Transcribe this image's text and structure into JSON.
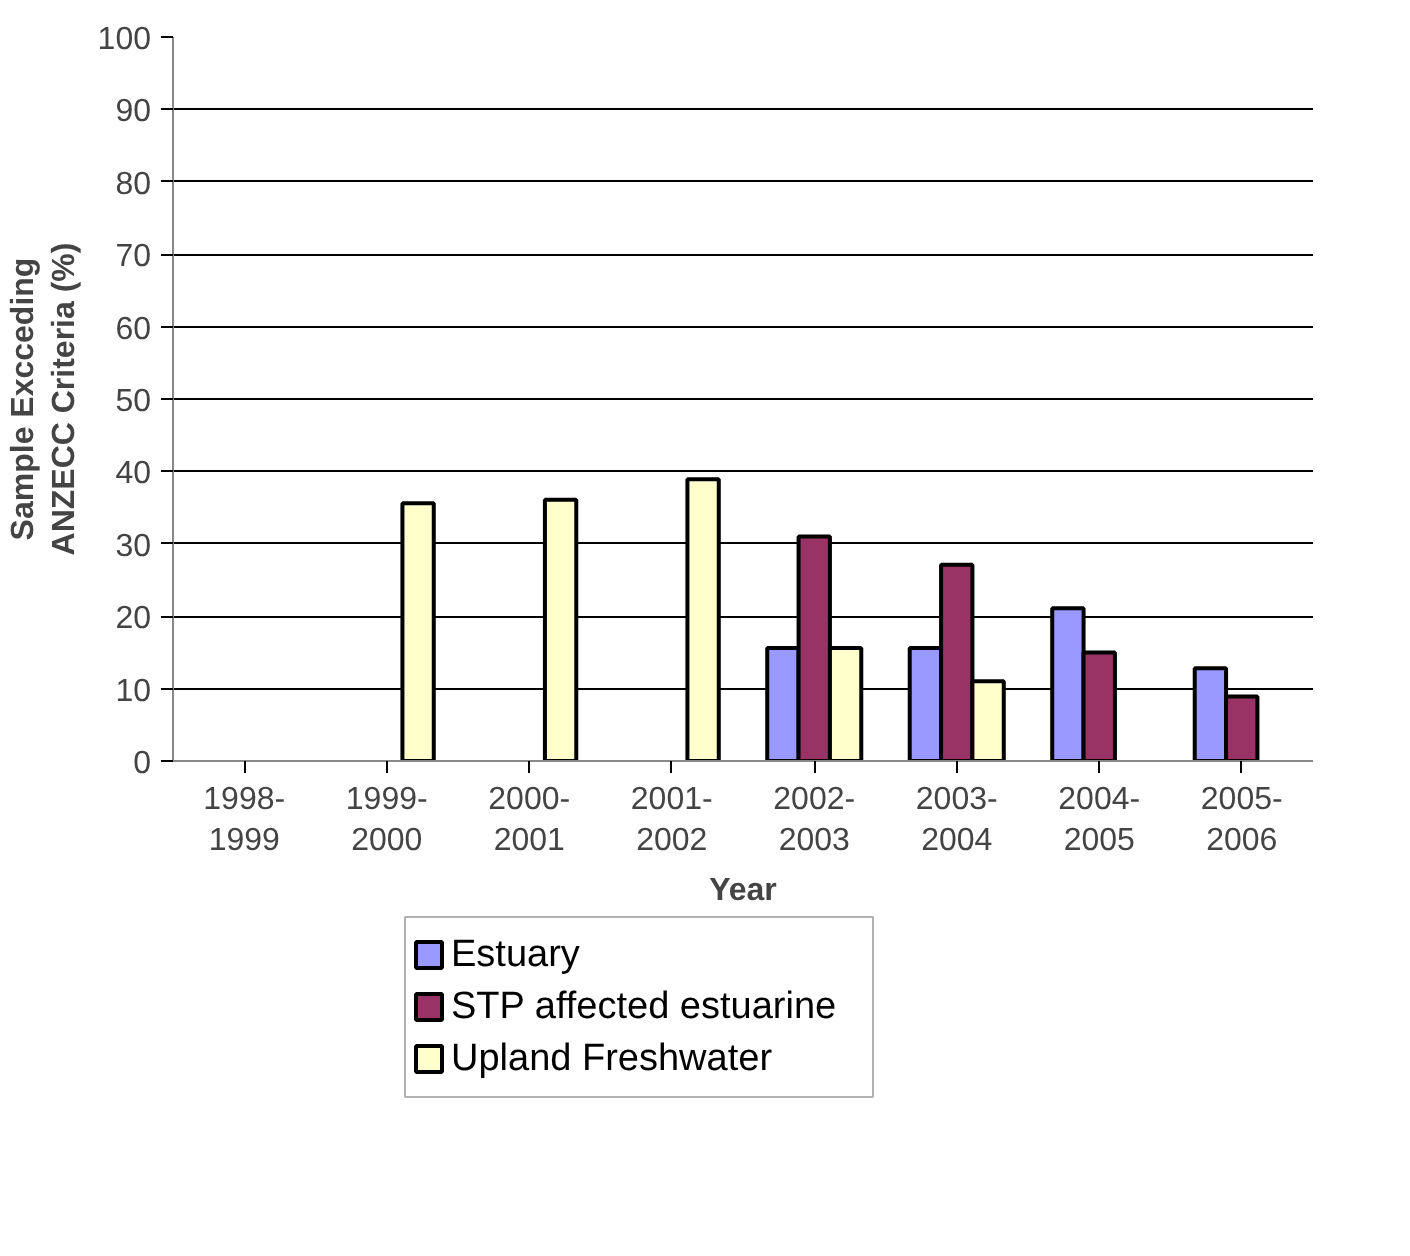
{
  "chart_data": {
    "type": "bar",
    "xlabel": "Year",
    "ylabel": "Sample Excceding ANZECC Criteria (%)",
    "categories": [
      "1998-1999",
      "1999-2000",
      "2000-2001",
      "2001-2002",
      "2002-2003",
      "2003-2004",
      "2004-2005",
      "2005-2006"
    ],
    "series": [
      {
        "name": "Estuary",
        "color": "#9999ff",
        "values": [
          null,
          null,
          null,
          null,
          15.6,
          15.6,
          21.1,
          12.8
        ]
      },
      {
        "name": "STP affected estuarine",
        "color": "#993366",
        "values": [
          null,
          null,
          null,
          null,
          31.0,
          27.1,
          15.0,
          8.9
        ]
      },
      {
        "name": "Upland Freshwater",
        "color": "#ffffcc",
        "values": [
          null,
          35.6,
          36.1,
          38.9,
          15.6,
          11.0,
          null,
          null
        ]
      }
    ],
    "ylim": [
      0,
      100
    ],
    "yticks": [
      0,
      10,
      20,
      30,
      40,
      50,
      60,
      70,
      80,
      90,
      100
    ],
    "grid": "y",
    "legend": "bottom"
  }
}
